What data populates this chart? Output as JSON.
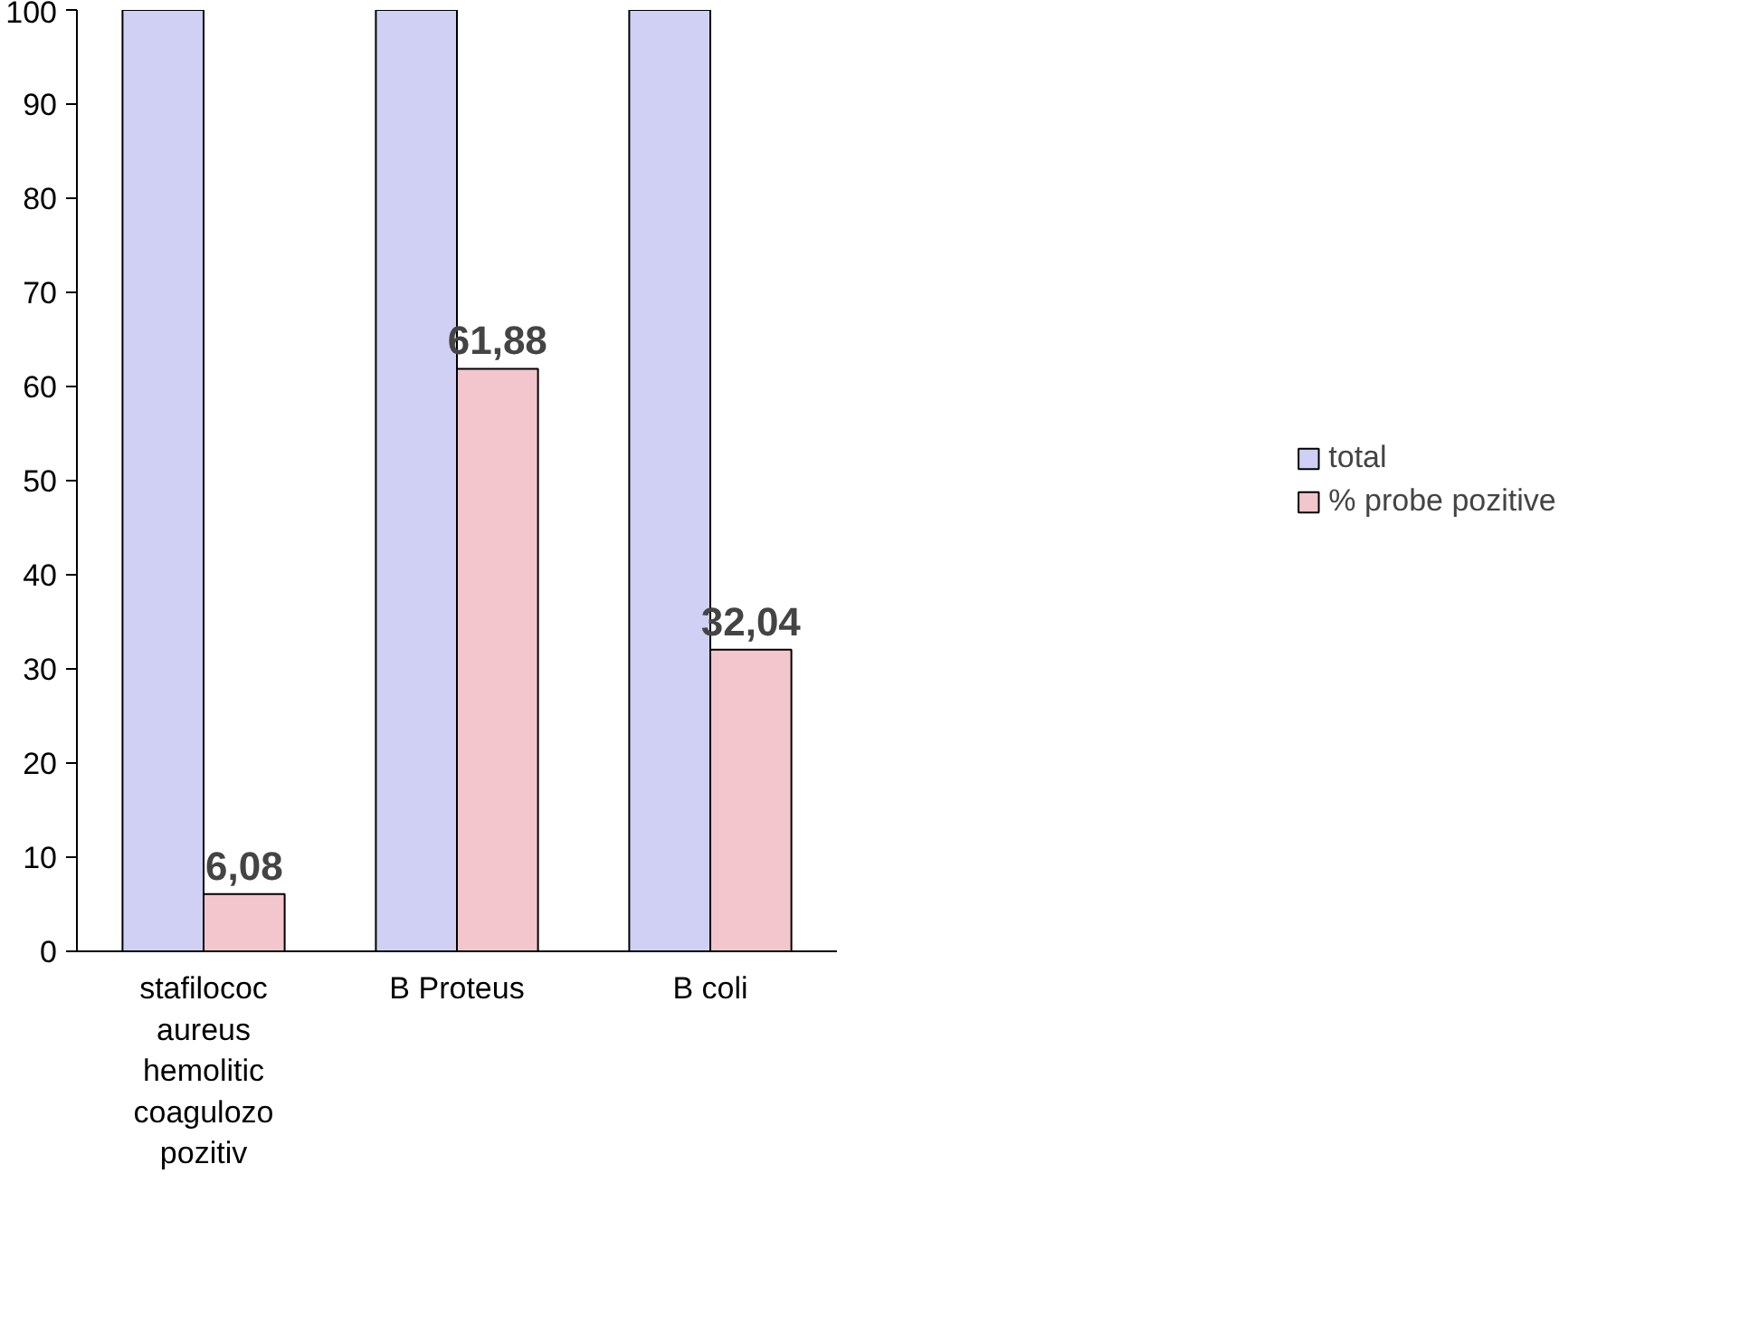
{
  "chart_data": {
    "type": "bar",
    "categories": [
      "stafilococ\naureus\nhemolitic\ncoagulozo\npozitiv",
      "B Proteus",
      "B coli"
    ],
    "series": [
      {
        "name": "total",
        "color": "#d0d0f4",
        "values": [
          100,
          100,
          100
        ]
      },
      {
        "name": "% probe pozitive",
        "color": "#f2c6cc",
        "values": [
          6.08,
          61.88,
          32.04
        ],
        "value_labels": [
          "6,08",
          "61,88",
          "32,04"
        ]
      }
    ],
    "ylim": [
      0,
      100
    ],
    "yticks": [
      0,
      10,
      20,
      30,
      40,
      50,
      60,
      70,
      80,
      90,
      100
    ],
    "grid": false,
    "legend": "right"
  }
}
